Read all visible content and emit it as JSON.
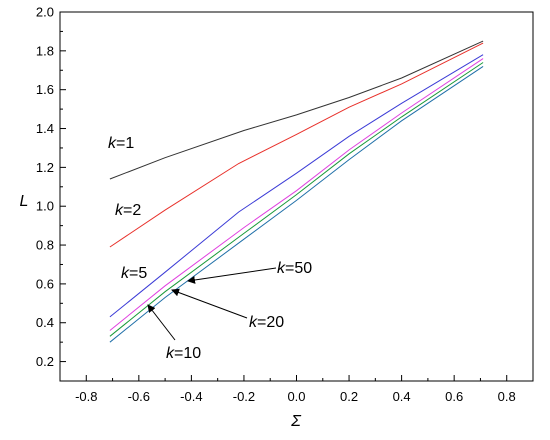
{
  "chart_data": {
    "type": "line",
    "xlabel": "Σ",
    "ylabel": "L",
    "xlim": [
      -0.9,
      0.9
    ],
    "ylim": [
      0.1,
      2.0
    ],
    "xticks": [
      -0.8,
      -0.6,
      -0.4,
      -0.2,
      0.0,
      0.2,
      0.4,
      0.6,
      0.8
    ],
    "yticks": [
      0.2,
      0.4,
      0.6,
      0.8,
      1.0,
      1.2,
      1.4,
      1.6,
      1.8,
      2.0
    ],
    "grid": false,
    "series": [
      {
        "color": "#333333",
        "x": [
          -0.71,
          -0.5,
          -0.2,
          0.0,
          0.2,
          0.4,
          0.71
        ],
        "y": [
          1.14,
          1.25,
          1.39,
          1.47,
          1.56,
          1.66,
          1.85
        ]
      },
      {
        "color": "#e8302a",
        "x": [
          -0.71,
          -0.5,
          -0.22,
          0.0,
          0.2,
          0.4,
          0.71
        ],
        "y": [
          0.79,
          0.98,
          1.22,
          1.37,
          1.51,
          1.63,
          1.84
        ]
      },
      {
        "color": "#3b3bd6",
        "x": [
          -0.71,
          -0.5,
          -0.22,
          0.0,
          0.2,
          0.4,
          0.71
        ],
        "y": [
          0.43,
          0.66,
          0.97,
          1.17,
          1.36,
          1.53,
          1.78
        ]
      },
      {
        "color": "#e040e0",
        "x": [
          -0.71,
          -0.5,
          -0.2,
          0.0,
          0.2,
          0.4,
          0.71
        ],
        "y": [
          0.36,
          0.59,
          0.89,
          1.08,
          1.29,
          1.48,
          1.76
        ]
      },
      {
        "color": "#1a9a3a",
        "x": [
          -0.71,
          -0.5,
          -0.2,
          0.0,
          0.2,
          0.4,
          0.71
        ],
        "y": [
          0.33,
          0.56,
          0.86,
          1.06,
          1.27,
          1.46,
          1.74
        ]
      },
      {
        "color": "#1f6fa8",
        "x": [
          -0.71,
          -0.5,
          -0.2,
          0.0,
          0.2,
          0.4,
          0.71
        ],
        "y": [
          0.3,
          0.53,
          0.83,
          1.03,
          1.24,
          1.44,
          1.72
        ]
      }
    ],
    "annotations": [
      {
        "k": "k",
        "v": "=1"
      },
      {
        "k": "k",
        "v": "=2"
      },
      {
        "k": "k",
        "v": "=5"
      },
      {
        "k": "k",
        "v": "=10"
      },
      {
        "k": "k",
        "v": "=20"
      },
      {
        "k": "k",
        "v": "=50"
      }
    ]
  }
}
